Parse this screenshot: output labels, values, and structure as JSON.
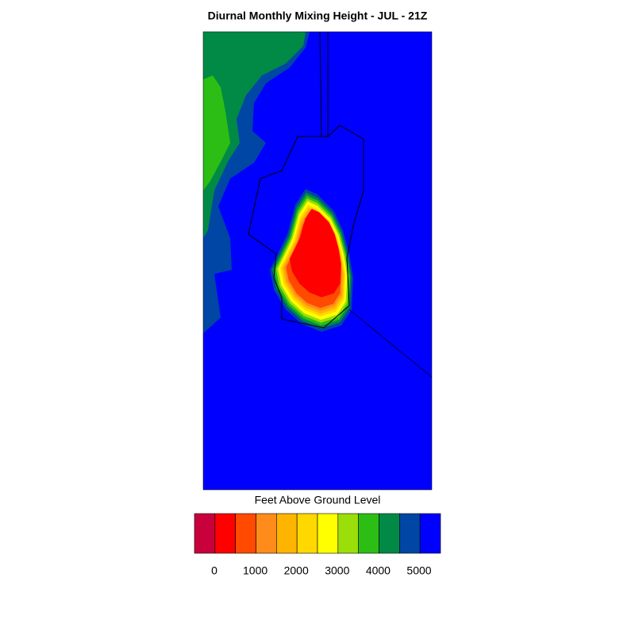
{
  "title": "Diurnal Monthly Mixing Height - JUL - 21Z",
  "colorbar": {
    "label": "Feet Above Ground Level",
    "colors": [
      "#c8003c",
      "#ff0000",
      "#ff4a00",
      "#ff8c1a",
      "#ffb400",
      "#ffd800",
      "#ffff00",
      "#9ade0a",
      "#2cbe14",
      "#008a46",
      "#0046a4",
      "#0000ff"
    ],
    "ticks": [
      0,
      1000,
      2000,
      3000,
      4000,
      5000
    ]
  }
}
